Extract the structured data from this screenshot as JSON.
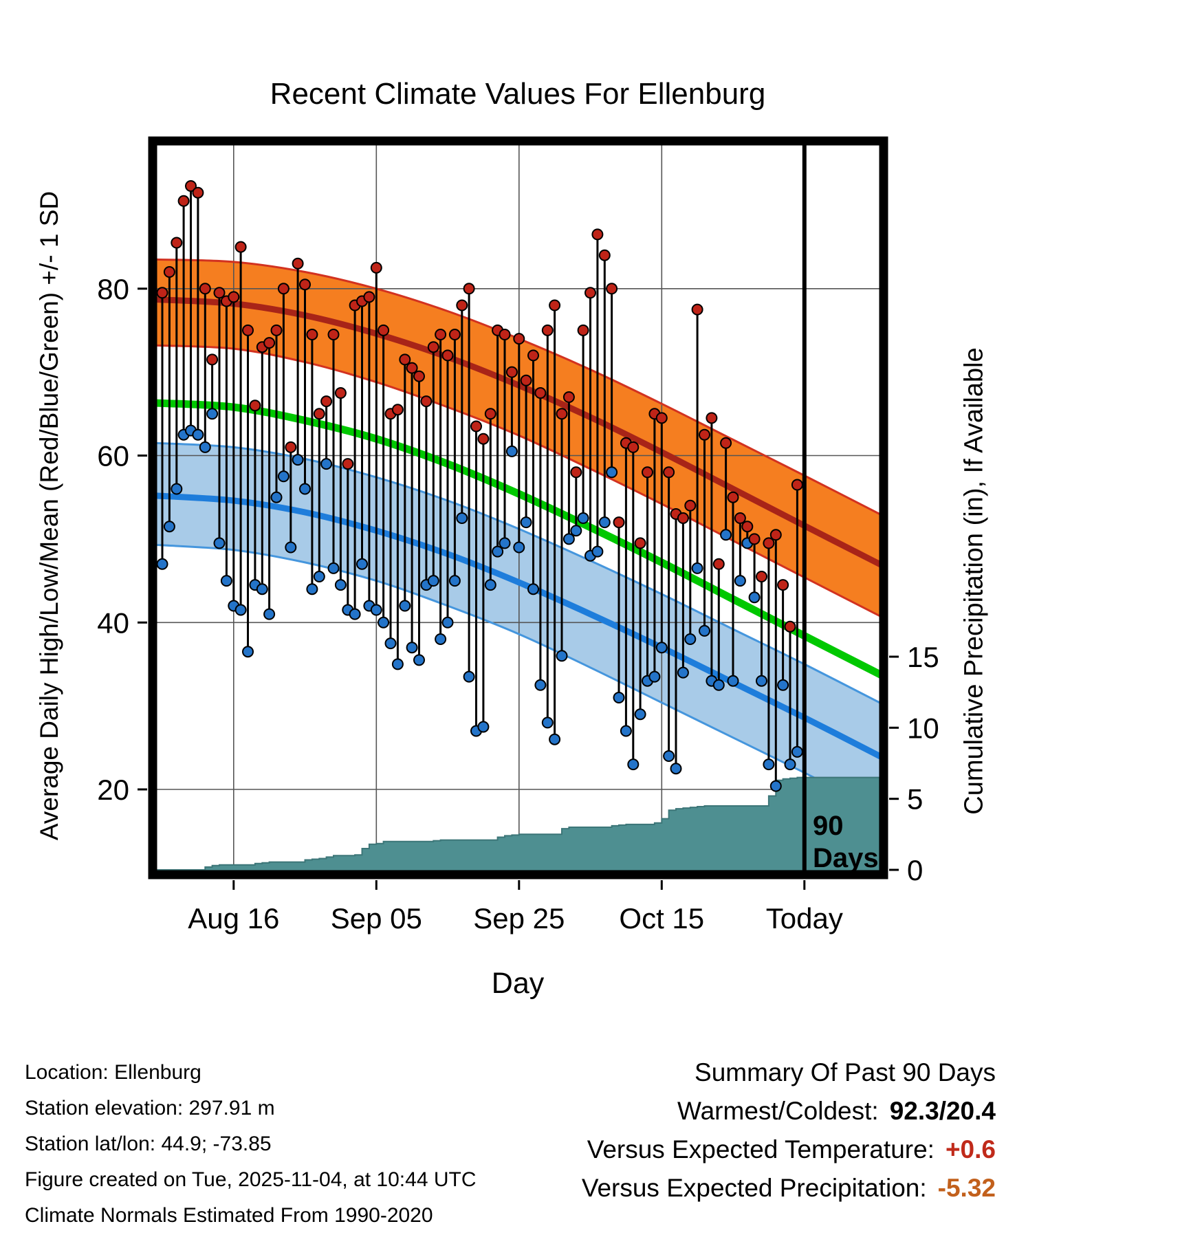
{
  "title": "Recent Climate Values For Ellenburg",
  "axes": {
    "y_left_label": "Average Daily High/Low/Mean (Red/Blue/Green) +/- 1 SD",
    "y_right_label": "Cumulative Precipitation (in), If Available",
    "x_label": "Day",
    "x_ticks": [
      {
        "label": "Aug 16",
        "day": 10
      },
      {
        "label": "Sep 05",
        "day": 30
      },
      {
        "label": "Sep 25",
        "day": 50
      },
      {
        "label": "Oct 15",
        "day": 70
      },
      {
        "label": "Today",
        "day": 90
      }
    ],
    "y_left_ticks": [
      20,
      40,
      60,
      80
    ],
    "y_right_ticks": [
      0,
      5,
      10,
      15
    ]
  },
  "annotation": {
    "line1": "90",
    "line2": "Days"
  },
  "colors": {
    "high_band": "#f57e20",
    "high_band_edge": "#d23220",
    "high_mean_line": "#a82418",
    "mean_line": "#00c800",
    "low_band": "#a8cbe8",
    "low_band_edge": "#4596dd",
    "low_mean_line": "#1e7ddb",
    "high_dot": "#bf2418",
    "low_dot": "#2474c9",
    "stem": "#000000",
    "grid": "#555555",
    "precip_fill": "#4e8f91",
    "precip_edge": "#3c7678",
    "border": "#000000",
    "today_line": "#000000"
  },
  "chart_data": {
    "type": "line",
    "subtype": "daily-high-low-range-with-climatology-bands-and-cumulative-precip",
    "title": "Recent Climate Values For Ellenburg",
    "xlabel": "Day",
    "ylabel_left": "Average Daily High/Low/Mean (Red/Blue/Green) +/- 1 SD",
    "ylabel_right": "Cumulative Precipitation (in), If Available",
    "n_days": 90,
    "first_day_label": "Aug 06",
    "today_day_index": 90,
    "temp_axis_visible_ticks": [
      20,
      40,
      60,
      80
    ],
    "precip_axis_visible_ticks": [
      0,
      5,
      10,
      15
    ],
    "daily": {
      "highs": [
        79.5,
        82,
        85.5,
        90.5,
        92.3,
        91.5,
        80,
        71.5,
        79.5,
        78.5,
        79,
        85,
        75,
        66,
        73,
        73.5,
        75,
        80,
        61,
        83,
        80.5,
        74.5,
        65,
        66.5,
        74.5,
        67.5,
        59,
        78,
        78.5,
        79,
        82.5,
        75,
        65,
        65.5,
        71.5,
        70.5,
        69.5,
        66.5,
        73,
        74.5,
        72,
        74.5,
        78,
        80,
        63.5,
        62,
        65,
        75,
        74.5,
        70,
        74,
        69,
        72,
        67.5,
        75,
        78,
        65,
        67,
        58,
        75,
        79.5,
        86.5,
        84,
        80,
        52,
        61.5,
        61,
        49.5,
        58,
        65,
        64.5,
        58,
        53,
        52.5,
        54,
        77.5,
        62.5,
        64.5,
        47,
        61.5,
        55,
        52.5,
        51.5,
        50,
        45.5,
        49.5,
        50.5,
        44.5,
        39.5,
        56.5
      ],
      "lows": [
        47,
        51.5,
        56,
        62.5,
        63,
        62.5,
        61,
        65,
        49.5,
        45,
        42,
        41.5,
        36.5,
        44.5,
        44,
        41,
        55,
        57.5,
        49,
        59.5,
        56,
        44,
        45.5,
        59,
        46.5,
        44.5,
        41.5,
        41,
        47,
        42,
        41.5,
        40,
        37.5,
        35,
        42,
        37,
        35.5,
        44.5,
        45,
        38,
        40,
        45,
        52.5,
        33.5,
        27,
        27.5,
        44.5,
        48.5,
        49.5,
        60.5,
        49,
        52,
        44,
        32.5,
        28,
        26,
        36,
        50,
        51,
        52.5,
        48,
        48.5,
        52,
        58,
        31,
        27,
        23,
        29,
        33,
        33.5,
        37,
        24,
        22.5,
        34,
        38,
        46.5,
        39,
        33,
        32.5,
        50.5,
        33,
        45,
        49.5,
        43,
        33,
        23,
        20.4,
        32.5,
        23,
        24.5
      ]
    },
    "climatology_control_days": [
      -1,
      10,
      20,
      30,
      40,
      50,
      60,
      70,
      80,
      90,
      101
    ],
    "climatology": {
      "high_upper": [
        83.5,
        83.2,
        82.0,
        80.0,
        77.3,
        74.0,
        70.3,
        66.2,
        61.9,
        57.6,
        52.8
      ],
      "high_mean": [
        78.7,
        78.2,
        76.8,
        74.6,
        71.8,
        68.4,
        64.6,
        60.4,
        56.0,
        51.6,
        46.8
      ],
      "high_lower": [
        73.2,
        72.8,
        71.2,
        68.8,
        65.8,
        62.4,
        58.4,
        54.2,
        49.8,
        45.4,
        40.6
      ],
      "mean": [
        66.3,
        65.8,
        64.2,
        62.0,
        59.0,
        55.4,
        51.4,
        47.2,
        42.8,
        38.4,
        33.6
      ],
      "low_upper": [
        61.5,
        61.0,
        59.6,
        57.4,
        54.6,
        51.2,
        47.4,
        43.4,
        39.2,
        35.0,
        30.2
      ],
      "low_mean": [
        55.2,
        54.6,
        53.2,
        51.0,
        48.2,
        44.8,
        41.0,
        37.0,
        32.8,
        28.6,
        23.8
      ],
      "low_lower": [
        49.3,
        48.7,
        47.2,
        45.0,
        42.0,
        38.6,
        34.6,
        30.4,
        26.2,
        22.0,
        17.2
      ]
    },
    "cumulative_precip": [
      0,
      0,
      0,
      0,
      0,
      0,
      0.2,
      0.3,
      0.35,
      0.35,
      0.35,
      0.35,
      0.35,
      0.45,
      0.5,
      0.55,
      0.55,
      0.55,
      0.55,
      0.55,
      0.7,
      0.75,
      0.8,
      0.9,
      1,
      1,
      1,
      1.05,
      1.5,
      1.8,
      1.85,
      2,
      2,
      2,
      2,
      2,
      2,
      2,
      2.05,
      2.1,
      2.1,
      2.1,
      2.1,
      2.1,
      2.1,
      2.1,
      2.1,
      2.3,
      2.4,
      2.45,
      2.5,
      2.5,
      2.5,
      2.5,
      2.5,
      2.5,
      2.9,
      3,
      3,
      3,
      3,
      3,
      3,
      3.1,
      3.15,
      3.2,
      3.2,
      3.2,
      3.2,
      3.3,
      3.6,
      4.2,
      4.3,
      4.35,
      4.4,
      4.45,
      4.5,
      4.5,
      4.5,
      4.5,
      4.5,
      4.5,
      4.5,
      4.5,
      4.5,
      5.2,
      6.3,
      6.4,
      6.45,
      6.5
    ]
  },
  "footer": {
    "lines": [
      "Location: Ellenburg",
      "Station elevation: 297.91 m",
      "Station lat/lon: 44.9; -73.85",
      "Figure created on Tue, 2025-11-04, at 10:44 UTC",
      "Climate Normals Estimated From 1990-2020"
    ]
  },
  "summary": {
    "title": "Summary Of Past 90 Days",
    "rows": [
      {
        "label": "Warmest/Coldest:",
        "value": "92.3/20.4",
        "value_color": "#000000"
      },
      {
        "label": "Versus Expected Temperature:",
        "value": "+0.6",
        "value_color": "#c02a1a"
      },
      {
        "label": "Versus Expected Precipitation:",
        "value": "-5.32",
        "value_color": "#c2601c"
      }
    ]
  }
}
